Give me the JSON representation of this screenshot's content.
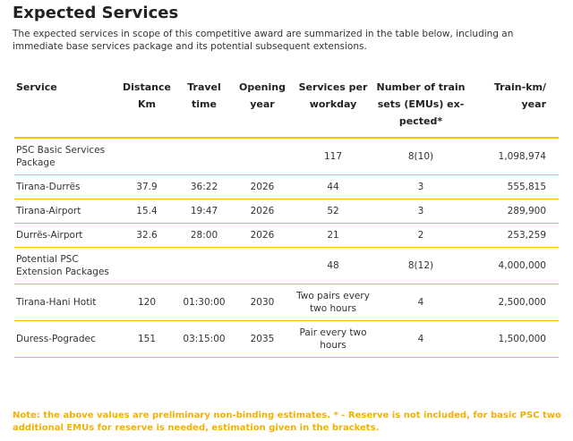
{
  "header": {
    "title": "Expected Services",
    "intro": "The expected services in scope of this competitive award are summarized in the table below, including an immediate base services package and its potential subsequent extensions."
  },
  "table": {
    "columns": [
      "Service",
      "Distance Km",
      "Travel time",
      "Opening year",
      "Services per workday",
      "Number of train sets (EMUs) ex-pected*",
      "Train-km/ year"
    ],
    "rows": [
      [
        "PSC Basic Services Package",
        null,
        null,
        null,
        "117",
        "8(10)",
        "1,098,974"
      ],
      [
        "Tirana-Durrës",
        "37.9",
        "36:22",
        "2026",
        "44",
        "3",
        "555,815"
      ],
      [
        "Tirana-Airport",
        "15.4",
        "19:47",
        "2026",
        "52",
        "3",
        "289,900"
      ],
      [
        "Durrës-Airport",
        "32.6",
        "28:00",
        "2026",
        "21",
        "2",
        "253,259"
      ],
      [
        "Potential PSC Extension Packages",
        null,
        null,
        null,
        "48",
        "8(12)",
        "4,000,000"
      ],
      [
        "Tirana-Hani Hotit",
        "120",
        "01:30:00",
        "2030",
        "Two pairs every two hours",
        "4",
        "2,500,000"
      ],
      [
        "Duress-Pogradec",
        "151",
        "03:15:00",
        "2035",
        "Pair every two hours",
        "4",
        "1,500,000"
      ]
    ]
  },
  "note": "Note: the above values are preliminary non-binding estimates. * - Reserve is not included, for basic PSC two additional EMUs for reserve is needed, estimation given in the brackets."
}
